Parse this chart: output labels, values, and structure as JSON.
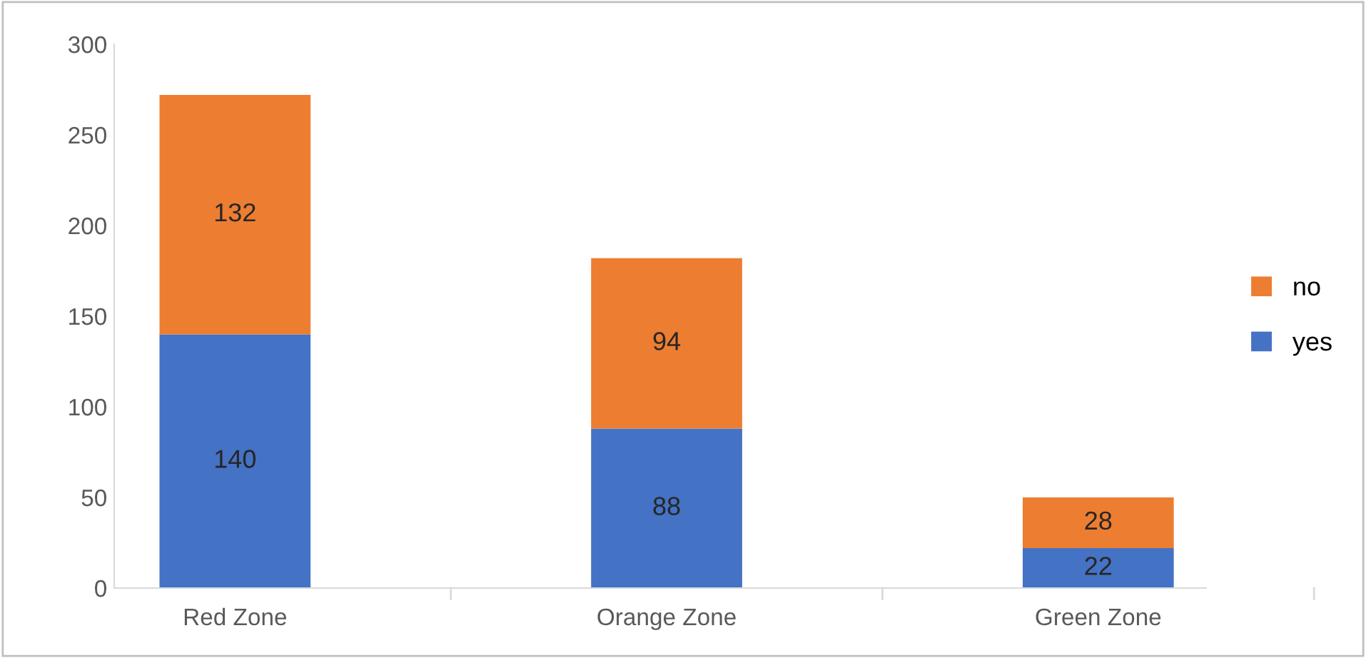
{
  "chart_data": {
    "type": "bar",
    "stacked": true,
    "categories": [
      "Red Zone",
      "Orange Zone",
      "Green Zone"
    ],
    "series": [
      {
        "name": "yes",
        "color": "#4472c4",
        "values": [
          140,
          88,
          22
        ]
      },
      {
        "name": "no",
        "color": "#ed7d31",
        "values": [
          132,
          94,
          28
        ]
      }
    ],
    "ylim": [
      0,
      300
    ],
    "yticks": [
      0,
      50,
      100,
      150,
      200,
      250,
      300
    ],
    "grid": false,
    "legend": "right",
    "data_labels": true
  }
}
